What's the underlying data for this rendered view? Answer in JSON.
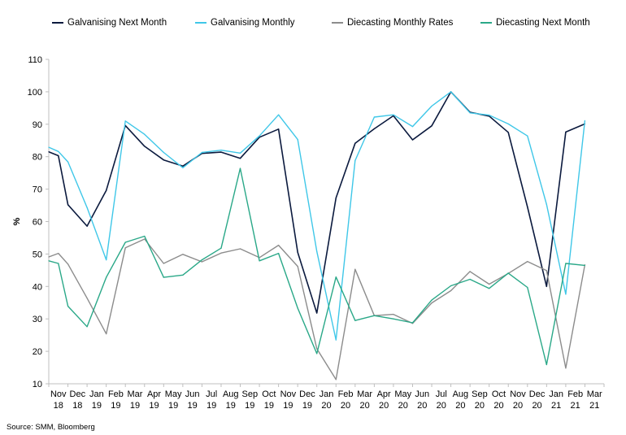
{
  "colors": {
    "galvanising_next_month": "#0b1a3e",
    "galvanising_monthly": "#3fc7e8",
    "diecasting_monthly_rates": "#8c8c8c",
    "diecasting_next_month": "#2aa888"
  },
  "source": "Source: SMM, Bloomberg",
  "chart_data": {
    "type": "line",
    "title": "",
    "xlabel": "",
    "ylabel": "%",
    "ylim": [
      10,
      110
    ],
    "yticks": [
      10,
      20,
      30,
      40,
      50,
      60,
      70,
      80,
      90,
      100,
      110
    ],
    "grid": false,
    "legend_position": "top",
    "categories": [
      [
        "Nov",
        "18"
      ],
      [
        "Dec",
        "18"
      ],
      [
        "Jan",
        "19"
      ],
      [
        "Feb",
        "19"
      ],
      [
        "Mar",
        "19"
      ],
      [
        "Apr",
        "19"
      ],
      [
        "May",
        "19"
      ],
      [
        "Jun",
        "19"
      ],
      [
        "Jul",
        "19"
      ],
      [
        "Aug",
        "19"
      ],
      [
        "Sep",
        "19"
      ],
      [
        "Oct",
        "19"
      ],
      [
        "Nov",
        "19"
      ],
      [
        "Dec",
        "19"
      ],
      [
        "Jan",
        "20"
      ],
      [
        "Feb",
        "20"
      ],
      [
        "Mar",
        "20"
      ],
      [
        "Apr",
        "20"
      ],
      [
        "May",
        "20"
      ],
      [
        "Jun",
        "20"
      ],
      [
        "Jul",
        "20"
      ],
      [
        "Aug",
        "20"
      ],
      [
        "Sep",
        "20"
      ],
      [
        "Oct",
        "20"
      ],
      [
        "Nov",
        "20"
      ],
      [
        "Dec",
        "20"
      ],
      [
        "Jan",
        "21"
      ],
      [
        "Feb",
        "21"
      ],
      [
        "Mar",
        "21"
      ]
    ],
    "series": [
      {
        "name": "Galvanising Next Month",
        "color_key": "galvanising_next_month",
        "width": 1.6,
        "points": [
          [
            "Nov 18",
            81.5
          ],
          [
            "",
            80.3
          ],
          [
            "Dec 18",
            65.2
          ],
          [
            "Jan 19",
            58.6
          ],
          [
            "Feb 19",
            69.6
          ],
          [
            "Mar 19",
            89.6
          ],
          [
            "Apr 19",
            83.2
          ],
          [
            "May 19",
            79.0
          ],
          [
            "Jun 19",
            77.1
          ],
          [
            "Jul 19",
            81.0
          ],
          [
            "Aug 19",
            81.4
          ],
          [
            "Sep 19",
            79.5
          ],
          [
            "Oct 19",
            86.0
          ],
          [
            "Nov 19",
            88.5
          ],
          [
            "Dec 19",
            50.5
          ],
          [
            "Jan 20",
            31.8
          ],
          [
            "Feb 20",
            67.3
          ],
          [
            "Mar 20",
            84.1
          ],
          [
            "Apr 20",
            88.6
          ],
          [
            "May 20",
            92.6
          ],
          [
            "Jun 20",
            85.2
          ],
          [
            "Jul 20",
            89.5
          ],
          [
            "Aug 20",
            100.0
          ],
          [
            "Sep 20",
            93.7
          ],
          [
            "Oct 20",
            92.5
          ],
          [
            "Nov 20",
            87.5
          ],
          [
            "Dec 20",
            64.5
          ],
          [
            "Jan 21",
            40.0
          ],
          [
            "Feb 21",
            87.6
          ],
          [
            "Mar 21",
            90.1
          ]
        ]
      },
      {
        "name": "Galvanising Monthly",
        "color_key": "galvanising_monthly",
        "width": 1.4,
        "points": [
          [
            "Nov 18",
            82.9
          ],
          [
            "",
            81.6
          ],
          [
            "Dec 18",
            78.4
          ],
          [
            "Jan 19",
            64.3
          ],
          [
            "Feb 19",
            48.2
          ],
          [
            "Mar 19",
            91.0
          ],
          [
            "Apr 19",
            86.9
          ],
          [
            "May 19",
            81.3
          ],
          [
            "Jun 19",
            76.6
          ],
          [
            "Jul 19",
            81.3
          ],
          [
            "Aug 19",
            82.0
          ],
          [
            "Sep 19",
            81.1
          ],
          [
            "Oct 19",
            86.4
          ],
          [
            "Nov 19",
            92.9
          ],
          [
            "Dec 19",
            85.3
          ],
          [
            "Jan 20",
            50.8
          ],
          [
            "Feb 20",
            23.5
          ],
          [
            "Mar 20",
            78.8
          ],
          [
            "Apr 20",
            92.2
          ],
          [
            "May 20",
            92.9
          ],
          [
            "Jun 20",
            89.3
          ],
          [
            "Jul 20",
            95.6
          ],
          [
            "Aug 20",
            100.0
          ],
          [
            "Sep 20",
            93.5
          ],
          [
            "Oct 20",
            92.8
          ],
          [
            "Nov 20",
            90.1
          ],
          [
            "Dec 20",
            86.4
          ],
          [
            "Jan 21",
            65.3
          ],
          [
            "Feb 21",
            37.6
          ],
          [
            "Mar 21",
            91.1
          ]
        ]
      },
      {
        "name": "Diecasting Monthly Rates",
        "color_key": "diecasting_monthly_rates",
        "width": 1.4,
        "points": [
          [
            "Nov 18",
            49.1
          ],
          [
            "",
            50.2
          ],
          [
            "Dec 18",
            46.9
          ],
          [
            "Jan 19",
            36.4
          ],
          [
            "Feb 19",
            25.4
          ],
          [
            "Mar 19",
            51.9
          ],
          [
            "Apr 19",
            54.6
          ],
          [
            "May 19",
            47.1
          ],
          [
            "Jun 19",
            49.9
          ],
          [
            "Jul 19",
            47.6
          ],
          [
            "Aug 19",
            50.3
          ],
          [
            "Sep 19",
            51.6
          ],
          [
            "Oct 19",
            48.9
          ],
          [
            "Nov 19",
            52.7
          ],
          [
            "Dec 19",
            46.2
          ],
          [
            "Jan 20",
            20.8
          ],
          [
            "Feb 20",
            11.3
          ],
          [
            "Mar 20",
            45.3
          ],
          [
            "Apr 20",
            31.0
          ],
          [
            "May 20",
            31.4
          ],
          [
            "Jun 20",
            28.6
          ],
          [
            "Jul 20",
            34.9
          ],
          [
            "Aug 20",
            38.7
          ],
          [
            "Sep 20",
            44.6
          ],
          [
            "Oct 20",
            40.7
          ],
          [
            "Nov 20",
            44.0
          ],
          [
            "Dec 20",
            47.7
          ],
          [
            "Jan 21",
            44.9
          ],
          [
            "Feb 21",
            14.8
          ],
          [
            "Mar 21",
            46.7
          ]
        ]
      },
      {
        "name": "Diecasting Next Month",
        "color_key": "diecasting_next_month",
        "width": 1.4,
        "points": [
          [
            "Nov 18",
            47.9
          ],
          [
            "",
            47.1
          ],
          [
            "Dec 18",
            33.9
          ],
          [
            "Jan 19",
            27.6
          ],
          [
            "Feb 19",
            42.8
          ],
          [
            "Mar 19",
            53.6
          ],
          [
            "Apr 19",
            55.5
          ],
          [
            "May 19",
            42.8
          ],
          [
            "Jun 19",
            43.5
          ],
          [
            "Jul 19",
            48.2
          ],
          [
            "Aug 19",
            51.8
          ],
          [
            "Sep 19",
            76.4
          ],
          [
            "Oct 19",
            47.9
          ],
          [
            "Nov 19",
            50.2
          ],
          [
            "Dec 19",
            33.3
          ],
          [
            "Jan 20",
            19.3
          ],
          [
            "Feb 20",
            42.9
          ],
          [
            "Mar 20",
            29.5
          ],
          [
            "Apr 20",
            31.0
          ],
          [
            "May 20",
            30.0
          ],
          [
            "Jun 20",
            28.8
          ],
          [
            "Jul 20",
            35.8
          ],
          [
            "Aug 20",
            40.2
          ],
          [
            "Sep 20",
            42.2
          ],
          [
            "Oct 20",
            39.4
          ],
          [
            "Nov 20",
            44.1
          ],
          [
            "Dec 20",
            39.7
          ],
          [
            "Jan 21",
            15.9
          ],
          [
            "Feb 21",
            47.1
          ],
          [
            "Mar 21",
            46.5
          ]
        ]
      }
    ]
  }
}
